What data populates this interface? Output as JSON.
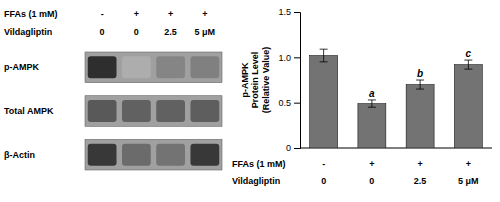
{
  "chart_data": [
    {
      "type": "blot",
      "rows": [
        "p-AMPK",
        "Total AMPK",
        "β-Actin"
      ],
      "lane_rows": [
        {
          "label": "FFAs (1 mM)",
          "values": [
            "-",
            "+",
            "+",
            "+"
          ]
        },
        {
          "label": "Vildagliptin",
          "values": [
            "0",
            "0",
            "2.5",
            "5 μM"
          ]
        }
      ],
      "cells": [
        [
          0.18,
          0.68,
          0.52,
          0.5
        ],
        [
          0.35,
          0.38,
          0.38,
          0.37
        ],
        [
          0.22,
          0.42,
          0.45,
          0.22
        ]
      ],
      "color": "#a0a0a0"
    },
    {
      "type": "bar",
      "values": [
        1.02,
        0.49,
        0.7,
        0.92
      ],
      "errors": [
        0.07,
        0.04,
        0.05,
        0.05
      ],
      "color": "#737373",
      "ylabel": "p-AMPK\nProtein Level\n(Relative Value)",
      "ylim": [
        0,
        1.5
      ],
      "yticks": [
        0,
        0.5,
        {
          "value": 1.0,
          "label": "1.0"
        },
        1.5
      ],
      "letters": [
        null,
        "a",
        "b",
        "c"
      ],
      "lane_rows": [
        {
          "label": "FFAs (1 mM)",
          "values": [
            "-",
            "+",
            "+",
            "+"
          ]
        },
        {
          "label": "Vildagliptin",
          "values": [
            "0",
            "0",
            "2.5",
            "5 μM"
          ]
        }
      ],
      "grid": false
    }
  ]
}
